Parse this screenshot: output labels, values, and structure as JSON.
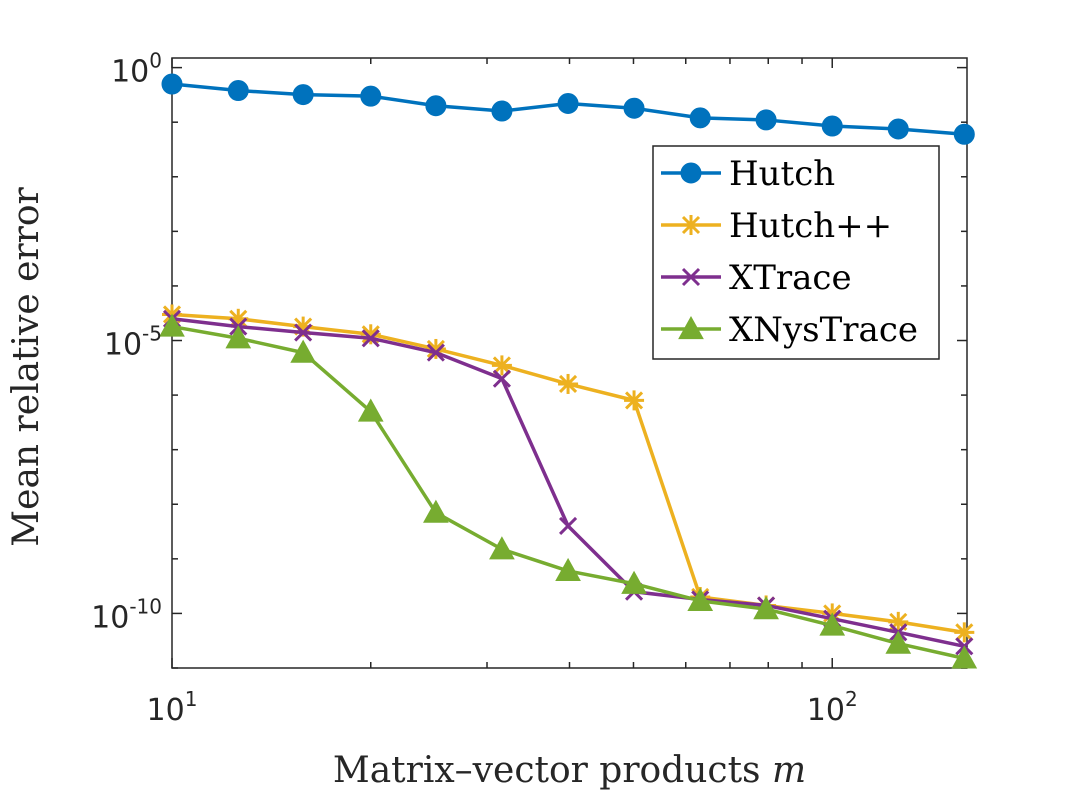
{
  "chart_data": {
    "type": "line",
    "xscale": "log",
    "yscale": "log",
    "xlim": [
      10,
      160
    ],
    "ylim": [
      1e-11,
      1.5
    ],
    "xlabel_main": "Matrix–vector products ",
    "xlabel_var": "m",
    "ylabel": "Mean relative error",
    "xticks": [
      {
        "value": 10,
        "base": "10",
        "exp": "1"
      },
      {
        "value": 100,
        "base": "10",
        "exp": "2"
      }
    ],
    "yticks": [
      {
        "value": 1,
        "base": "10",
        "exp": "0"
      },
      {
        "value": 1e-05,
        "base": "10",
        "exp": "-5"
      },
      {
        "value": 1e-10,
        "base": "10",
        "exp": "-10"
      }
    ],
    "legend_position": "upper-right",
    "x": [
      10,
      12.6,
      15.8,
      20,
      25.1,
      31.6,
      39.8,
      50.1,
      63.1,
      79.4,
      100,
      125.9,
      158.5
    ],
    "series": [
      {
        "name": "Hutch",
        "color": "#0072BD",
        "marker": "circle",
        "values": [
          0.5,
          0.38,
          0.32,
          0.3,
          0.2,
          0.16,
          0.22,
          0.18,
          0.12,
          0.11,
          0.085,
          0.075,
          0.06
        ]
      },
      {
        "name": "Hutch++",
        "color": "#EDB120",
        "marker": "asterisk",
        "values": [
          3e-05,
          2.5e-05,
          1.8e-05,
          1.3e-05,
          7e-06,
          3.5e-06,
          1.6e-06,
          8e-07,
          2e-10,
          1.4e-10,
          1e-10,
          7e-11,
          4.5e-11
        ]
      },
      {
        "name": "XTrace",
        "color": "#7E2F8E",
        "marker": "x",
        "values": [
          2.5e-05,
          1.8e-05,
          1.4e-05,
          1.1e-05,
          6e-06,
          2e-06,
          4e-09,
          2.5e-10,
          1.8e-10,
          1.4e-10,
          8e-11,
          4.5e-11,
          2.5e-11
        ]
      },
      {
        "name": "XNysTrace",
        "color": "#77AC30",
        "marker": "triangle",
        "values": [
          1.8e-05,
          1.1e-05,
          6e-06,
          5e-07,
          7e-09,
          1.5e-09,
          6e-10,
          3.5e-10,
          1.7e-10,
          1.2e-10,
          6e-11,
          2.8e-11,
          1.5e-11
        ]
      }
    ]
  }
}
